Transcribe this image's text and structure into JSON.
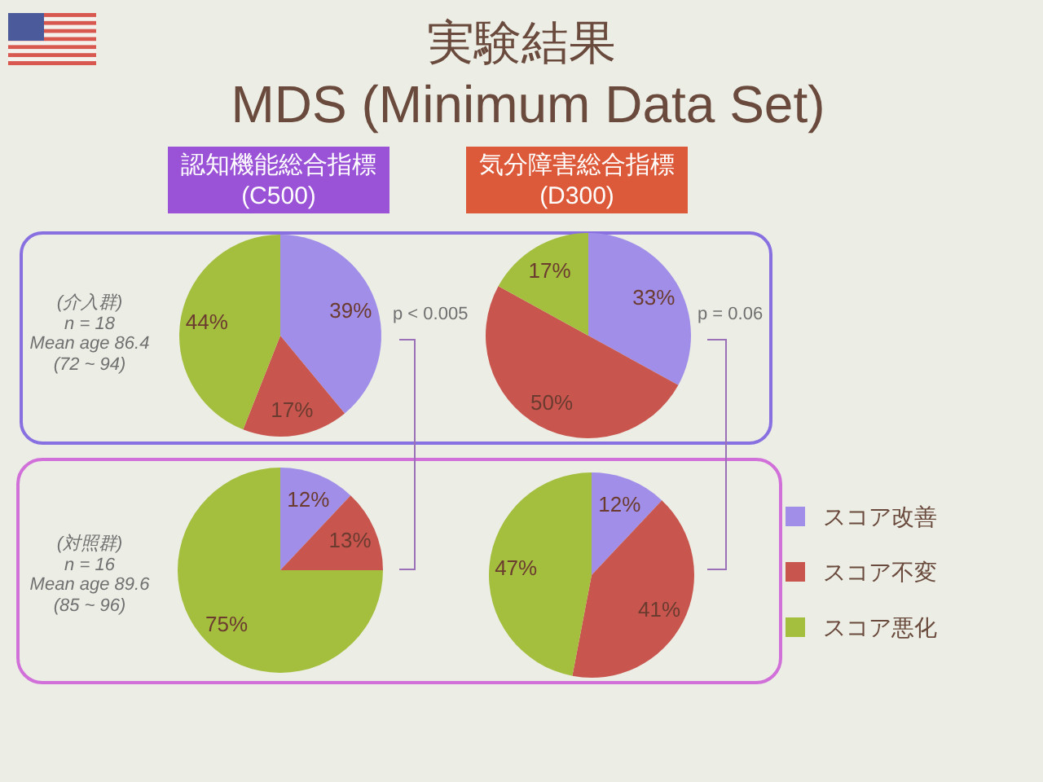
{
  "chart_data": [
    {
      "type": "other",
      "title": "実験結果",
      "subtitle": "MDS (Minimum Data Set)",
      "annotations": [
        "p < 0.005",
        "p = 0.06"
      ]
    },
    {
      "type": "pie",
      "title": "認知機能総合指標",
      "subtitle": "(C500)",
      "annotations": [
        "(介入群)",
        "n = 18",
        "Mean age 86.4",
        "(72 ~ 94)"
      ],
      "values": [
        39,
        17,
        44
      ],
      "colors": [
        "#a08ee8",
        "#c8564e",
        "#a4be3e"
      ],
      "value_labels": [
        "39%",
        "17%",
        "44%"
      ]
    },
    {
      "type": "pie",
      "title": "気分障害総合指標",
      "subtitle": "(D300)",
      "values": [
        33,
        50,
        17
      ],
      "colors": [
        "#a08ee8",
        "#c8564e",
        "#a4be3e"
      ],
      "value_labels": [
        "33%",
        "50%",
        "17%"
      ]
    },
    {
      "type": "pie",
      "annotations": [
        "(対照群)",
        "n = 16",
        "Mean age 89.6",
        "(85 ~ 96)"
      ],
      "values": [
        12,
        13,
        75
      ],
      "colors": [
        "#a08ee8",
        "#c8564e",
        "#a4be3e"
      ],
      "value_labels": [
        "12%",
        "13%",
        "75%"
      ]
    },
    {
      "type": "pie",
      "categories": [
        "スコア改善",
        "スコア不変",
        "スコア悪化"
      ],
      "values": [
        12,
        41,
        47
      ],
      "colors": [
        "#a08ee8",
        "#c8564e",
        "#a4be3e"
      ],
      "value_labels": [
        "12%",
        "41%",
        "47%"
      ],
      "legend": "right"
    }
  ]
}
